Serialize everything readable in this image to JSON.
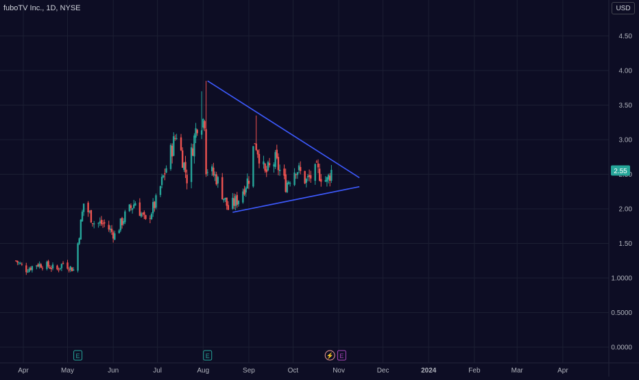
{
  "header": {
    "symbol_title": "fuboTV Inc., 1D, NYSE",
    "currency_label": "USD"
  },
  "colors": {
    "background": "#0d0d24",
    "grid": "#1c1f33",
    "up_candle": "#26a69a",
    "down_candle": "#ef5350",
    "trendline": "#3d5afe",
    "text": "#b2b5be",
    "price_badge": "#26a69a"
  },
  "chart_data": {
    "type": "candlestick",
    "title": "fuboTV Inc., 1D, NYSE",
    "y_ticks": [
      "4.50",
      "4.00",
      "3.50",
      "3.00",
      "2.50",
      "2.00",
      "1.50",
      "1.0000",
      "0.5000",
      "0.0000"
    ],
    "x_ticks": [
      "Apr",
      "May",
      "Jun",
      "Jul",
      "Aug",
      "Sep",
      "Oct",
      "Nov",
      "Dec",
      "2024",
      "Feb",
      "Mar",
      "Apr"
    ],
    "ylim": [
      -0.1,
      4.85
    ],
    "grid": true,
    "last_price": "2.55",
    "close_anchors": [
      [
        "2023-03-27",
        1.25
      ],
      [
        "2023-04-03",
        1.12
      ],
      [
        "2023-04-10",
        1.2
      ],
      [
        "2023-04-17",
        1.18
      ],
      [
        "2023-04-24",
        1.12
      ],
      [
        "2023-04-28",
        1.22
      ],
      [
        "2023-05-05",
        1.12
      ],
      [
        "2023-05-08",
        1.5
      ],
      [
        "2023-05-12",
        2.08
      ],
      [
        "2023-05-19",
        1.8
      ],
      [
        "2023-05-26",
        1.78
      ],
      [
        "2023-06-02",
        1.62
      ],
      [
        "2023-06-09",
        1.9
      ],
      [
        "2023-06-16",
        2.1
      ],
      [
        "2023-06-23",
        1.8
      ],
      [
        "2023-06-30",
        2.1
      ],
      [
        "2023-07-07",
        2.6
      ],
      [
        "2023-07-14",
        3.1
      ],
      [
        "2023-07-21",
        2.45
      ],
      [
        "2023-07-28",
        3.25
      ],
      [
        "2023-08-02",
        3.3
      ],
      [
        "2023-08-03",
        2.6
      ],
      [
        "2023-08-10",
        2.45
      ],
      [
        "2023-08-18",
        2.0
      ],
      [
        "2023-08-25",
        2.15
      ],
      [
        "2023-09-01",
        2.45
      ],
      [
        "2023-09-05",
        3.0
      ],
      [
        "2023-09-12",
        2.5
      ],
      [
        "2023-09-19",
        2.7
      ],
      [
        "2023-09-26",
        2.35
      ],
      [
        "2023-10-03",
        2.6
      ],
      [
        "2023-10-10",
        2.4
      ],
      [
        "2023-10-17",
        2.55
      ],
      [
        "2023-10-24",
        2.4
      ],
      [
        "2023-10-27",
        2.55
      ]
    ],
    "events": [
      {
        "date": "2023-05-08",
        "label": "E"
      },
      {
        "date": "2023-08-04",
        "label": "E"
      },
      {
        "date": "2023-10-26",
        "label": "⚡"
      },
      {
        "date": "2023-11-03",
        "label": "E"
      }
    ],
    "trendlines": [
      {
        "from": [
          "2023-08-04",
          3.85
        ],
        "to": [
          "2023-11-15",
          2.45
        ]
      },
      {
        "from": [
          "2023-08-21",
          1.95
        ],
        "to": [
          "2023-11-15",
          2.32
        ]
      }
    ]
  }
}
